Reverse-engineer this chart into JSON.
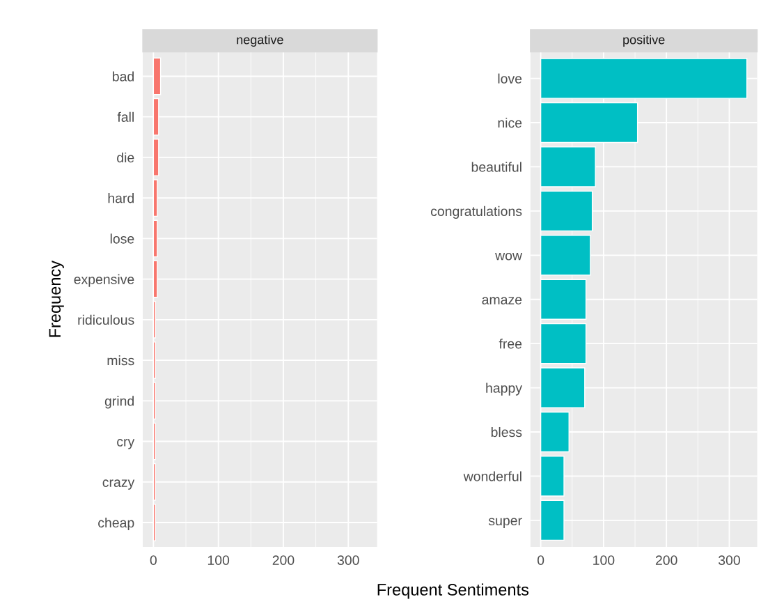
{
  "chart_data": [
    {
      "type": "bar",
      "orientation": "horizontal",
      "title": "negative",
      "xlabel": "Frequent Sentiments",
      "ylabel": "Frequency",
      "categories": [
        "bad",
        "fall",
        "die",
        "hard",
        "lose",
        "expensive",
        "ridiculous",
        "miss",
        "grind",
        "cry",
        "crazy",
        "cheap"
      ],
      "values": [
        11,
        8,
        8,
        6,
        6,
        6,
        3,
        3,
        3,
        3,
        3,
        3
      ],
      "color": "#f8766d",
      "xlim": [
        -16.4,
        344.4
      ],
      "xticks": [
        0,
        100,
        200,
        300
      ],
      "grid": true
    },
    {
      "type": "bar",
      "orientation": "horizontal",
      "title": "positive",
      "categories": [
        "love",
        "nice",
        "beautiful",
        "congratulations",
        "wow",
        "amaze",
        "free",
        "happy",
        "bless",
        "wonderful",
        "super"
      ],
      "values": [
        328,
        154,
        87,
        82,
        79,
        72,
        72,
        70,
        45,
        37,
        37
      ],
      "color": "#00bfc4",
      "xlim": [
        -16.4,
        344.4
      ],
      "xticks": [
        0,
        100,
        200,
        300
      ],
      "grid": true
    }
  ]
}
